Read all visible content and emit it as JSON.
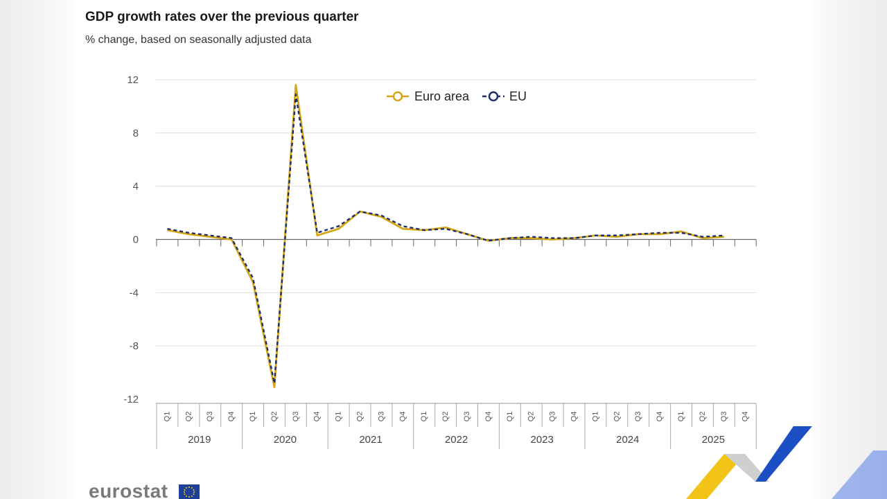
{
  "title": "GDP growth rates over the previous quarter",
  "subtitle": "% change, based on seasonally adjusted data",
  "brand": "eurostat",
  "colors": {
    "euro_area": "#d4a514",
    "eu": "#1f2f6b",
    "grid": "#dddddd",
    "axis": "#666666"
  },
  "chart_data": {
    "type": "line",
    "title": "GDP growth rates over the previous quarter",
    "subtitle": "% change, based on seasonally adjusted data",
    "xlabel": "",
    "ylabel": "",
    "ylim": [
      -12,
      12
    ],
    "yticks": [
      12,
      8,
      4,
      0,
      -4,
      -8,
      -12
    ],
    "grid": true,
    "legend_position": "top-center",
    "quarters": [
      "Q1",
      "Q2",
      "Q3",
      "Q4"
    ],
    "years": [
      "2019",
      "2020",
      "2021",
      "2022",
      "2023",
      "2024",
      "2025"
    ],
    "categories": [
      "2019Q1",
      "2019Q2",
      "2019Q3",
      "2019Q4",
      "2020Q1",
      "2020Q2",
      "2020Q3",
      "2020Q4",
      "2021Q1",
      "2021Q2",
      "2021Q3",
      "2021Q4",
      "2022Q1",
      "2022Q2",
      "2022Q3",
      "2022Q4",
      "2023Q1",
      "2023Q2",
      "2023Q3",
      "2023Q4",
      "2024Q1",
      "2024Q2",
      "2024Q3",
      "2024Q4",
      "2025Q1",
      "2025Q2",
      "2025Q3",
      "2025Q4"
    ],
    "series": [
      {
        "name": "Euro area",
        "values": [
          0.7,
          0.4,
          0.2,
          0.0,
          -3.2,
          -11.1,
          11.6,
          0.3,
          0.8,
          2.1,
          1.7,
          0.8,
          0.7,
          0.9,
          0.4,
          -0.1,
          0.1,
          0.1,
          0.0,
          0.1,
          0.3,
          0.2,
          0.4,
          0.4,
          0.6,
          0.1,
          0.2,
          null
        ]
      },
      {
        "name": "EU",
        "values": [
          0.8,
          0.5,
          0.3,
          0.1,
          -2.9,
          -10.8,
          10.9,
          0.5,
          1.0,
          2.1,
          1.8,
          1.0,
          0.7,
          0.8,
          0.4,
          -0.1,
          0.1,
          0.2,
          0.1,
          0.1,
          0.3,
          0.3,
          0.4,
          0.5,
          0.5,
          0.2,
          0.3,
          null
        ]
      }
    ]
  }
}
